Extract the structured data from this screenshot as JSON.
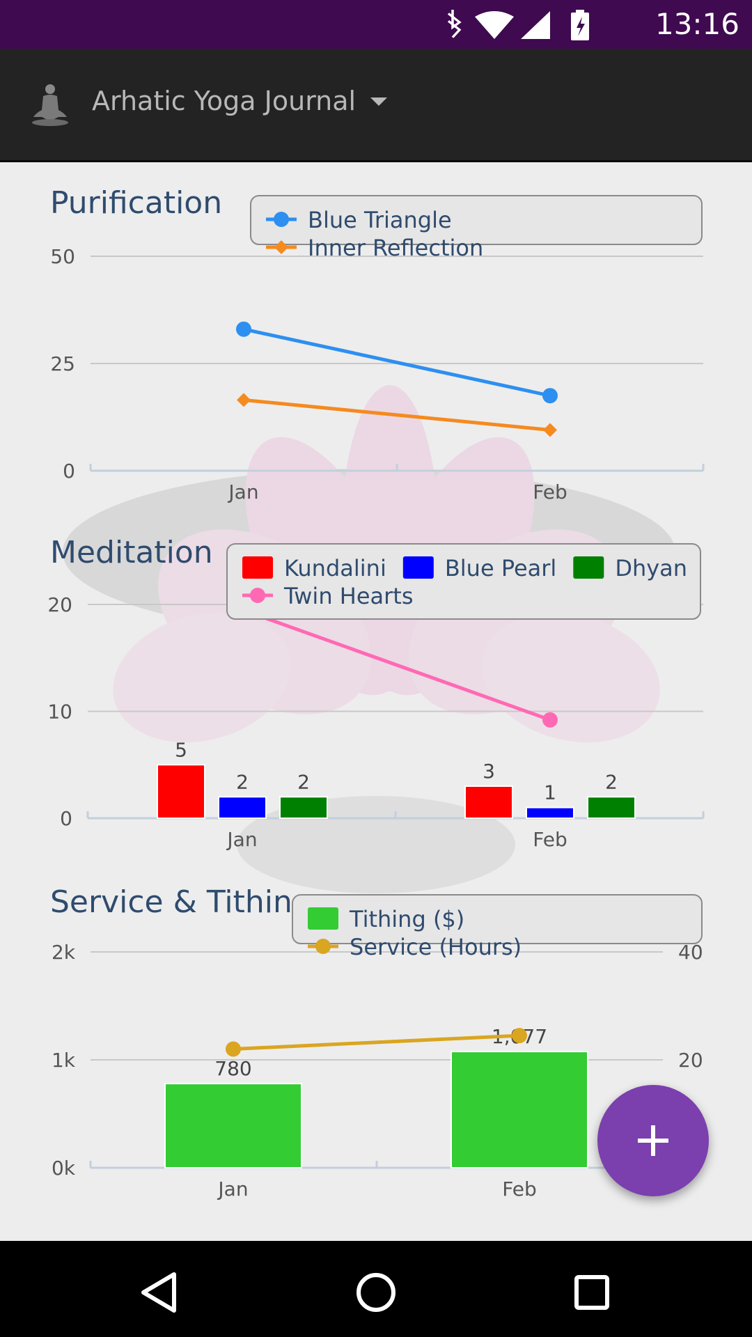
{
  "status_bar": {
    "time": "13:16",
    "icons": [
      "bluetooth-icon",
      "wifi-icon",
      "signal-icon",
      "battery-charging-icon"
    ]
  },
  "app_bar": {
    "title": "Arhatic Yoga Journal",
    "logo_icon": "meditation-figure-icon",
    "dropdown_icon": "caret-down-icon"
  },
  "fab": {
    "icon": "plus-icon",
    "color": "#7b3fae"
  },
  "nav_bar": {
    "icons": [
      "back-triangle-icon",
      "home-circle-icon",
      "recents-square-icon"
    ]
  },
  "chart_data": [
    {
      "type": "line",
      "title": "Purification",
      "categories": [
        "Jan",
        "Feb"
      ],
      "ylim": [
        0,
        50
      ],
      "yticks": [
        "0",
        "25",
        "50"
      ],
      "legend_position": "top-right",
      "grid": true,
      "series": [
        {
          "name": "Blue Triangle",
          "values": [
            33,
            17.5
          ],
          "color": "#2d8ff0",
          "marker": "circle"
        },
        {
          "name": "Inner Reflection",
          "values": [
            16.5,
            9.5
          ],
          "color": "#f58a1f",
          "marker": "diamond"
        }
      ]
    },
    {
      "type": "bar",
      "title": "Meditation",
      "categories": [
        "Jan",
        "Feb"
      ],
      "ylim": [
        0,
        20
      ],
      "yticks": [
        "0",
        "10",
        "20"
      ],
      "legend_position": "top-right",
      "grid": true,
      "series": [
        {
          "name": "Kundalini",
          "type": "bar",
          "values": [
            5,
            3
          ],
          "labels": [
            "5",
            "3"
          ],
          "color": "#ff0000"
        },
        {
          "name": "Blue Pearl",
          "type": "bar",
          "values": [
            2,
            1
          ],
          "labels": [
            "2",
            "1"
          ],
          "color": "#0000ff"
        },
        {
          "name": "Dhyan",
          "type": "bar",
          "values": [
            2,
            2
          ],
          "labels": [
            "2",
            "2"
          ],
          "color": "#008000"
        },
        {
          "name": "Twin Hearts",
          "type": "line",
          "values": [
            19.5,
            9.2
          ],
          "color": "#ff69b4",
          "marker": "circle"
        }
      ]
    },
    {
      "type": "bar",
      "title": "Service & Tithing",
      "categories": [
        "Jan",
        "Feb"
      ],
      "ylim": [
        0,
        2000
      ],
      "yticks": [
        "0k",
        "1k",
        "2k"
      ],
      "y2lim": [
        0,
        40
      ],
      "y2ticks": [
        "20",
        "40"
      ],
      "legend_position": "top-right",
      "grid": true,
      "series": [
        {
          "name": "Tithing ($)",
          "type": "bar",
          "axis": "left",
          "values": [
            780,
            1077
          ],
          "labels": [
            "780",
            "1,077"
          ],
          "color": "#33cc33"
        },
        {
          "name": "Service (Hours)",
          "type": "line",
          "axis": "right",
          "values": [
            22,
            24.5
          ],
          "color": "#daa520",
          "marker": "circle"
        }
      ]
    }
  ]
}
